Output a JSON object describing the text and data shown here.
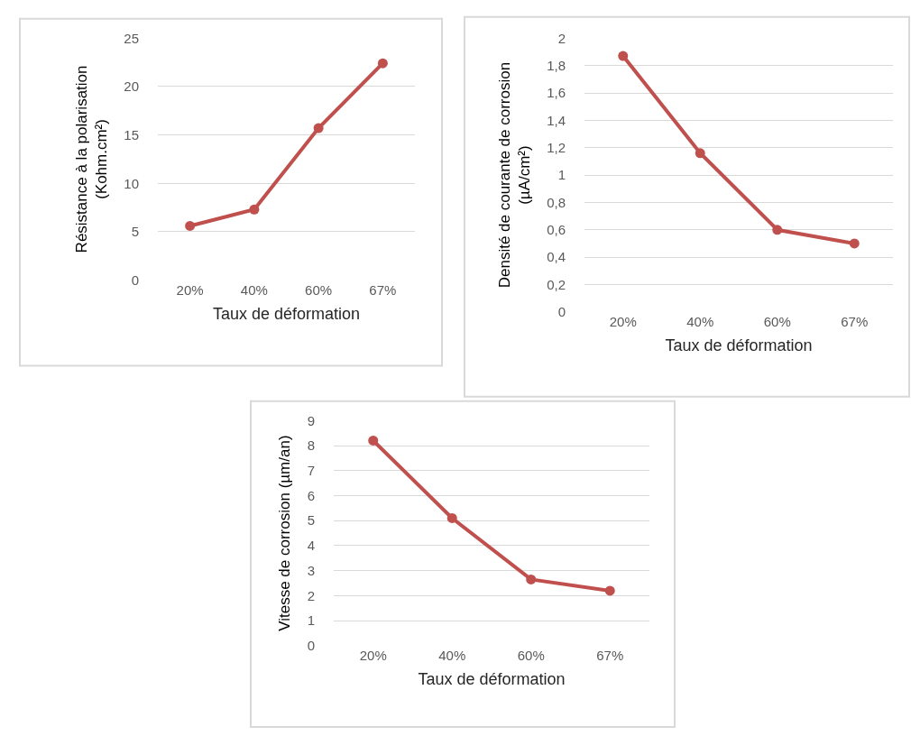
{
  "chart_data": [
    {
      "type": "line",
      "categories": [
        "20%",
        "40%",
        "60%",
        "67%"
      ],
      "xlabel": "Taux de déformation",
      "ylabel": "Résistance à la polarisation\n(Kohm.cm²)",
      "ylim": [
        0,
        25
      ],
      "yticks": [
        0,
        5,
        10,
        15,
        20,
        25
      ],
      "grid": "y",
      "marker": "circle",
      "line_style": "solid",
      "series": [
        {
          "color": "#c0504d",
          "values": [
            5.6,
            7.3,
            15.7,
            22.4
          ]
        }
      ]
    },
    {
      "type": "line",
      "categories": [
        "20%",
        "40%",
        "60%",
        "67%"
      ],
      "xlabel": "Taux de déformation",
      "ylabel": "Densité de courante de corrosion\n(µA/cm²)",
      "ylim": [
        0,
        2
      ],
      "yticks": [
        0,
        {
          "value": 0.2,
          "label": "0,2"
        },
        {
          "value": 0.4,
          "label": "0,4"
        },
        {
          "value": 0.6,
          "label": "0,6"
        },
        {
          "value": 0.8,
          "label": "0,8"
        },
        1,
        {
          "value": 1.2,
          "label": "1,2"
        },
        {
          "value": 1.4,
          "label": "1,4"
        },
        {
          "value": 1.6,
          "label": "1,6"
        },
        {
          "value": 1.8,
          "label": "1,8"
        },
        2
      ],
      "grid": "y",
      "marker": "circle",
      "line_style": "solid",
      "series": [
        {
          "color": "#c0504d",
          "values": [
            1.87,
            1.16,
            0.6,
            0.5
          ]
        }
      ]
    },
    {
      "type": "line",
      "categories": [
        "20%",
        "40%",
        "60%",
        "67%"
      ],
      "xlabel": "Taux de déformation",
      "ylabel": "Vitesse de corrosion (µm/an)",
      "ylim": [
        0,
        9
      ],
      "yticks": [
        0,
        1,
        2,
        3,
        4,
        5,
        6,
        7,
        8,
        9
      ],
      "grid": "y",
      "marker": "circle",
      "line_style": "solid",
      "series": [
        {
          "color": "#c0504d",
          "values": [
            8.2,
            5.1,
            2.65,
            2.2
          ]
        }
      ]
    }
  ]
}
